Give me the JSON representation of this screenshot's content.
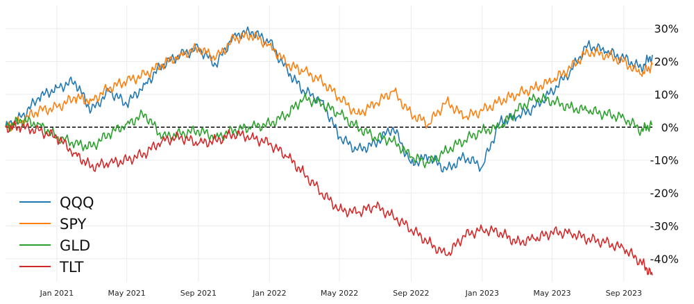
{
  "chart_data": {
    "type": "line",
    "title": "",
    "xlabel": "",
    "ylabel": "",
    "x_range": [
      "2020-10-05",
      "2023-10-20"
    ],
    "ylim": [
      -47,
      37
    ],
    "y_axis_side": "right",
    "y_ticks": [
      30,
      20,
      10,
      0,
      -10,
      -20,
      -30,
      -40
    ],
    "y_tick_labels": [
      "30%",
      "20%",
      "10%",
      "0%",
      "-10%",
      "-20%",
      "-30%",
      "-40%"
    ],
    "x_ticks": [
      "2021-01-01",
      "2021-05-01",
      "2021-09-01",
      "2022-01-01",
      "2022-05-01",
      "2022-09-01",
      "2023-01-01",
      "2023-05-01",
      "2023-09-01"
    ],
    "x_tick_labels": [
      "Jan 2021",
      "May 2021",
      "Sep 2021",
      "Jan 2022",
      "May 2022",
      "Sep 2022",
      "Jan 2023",
      "May 2023",
      "Sep 2023"
    ],
    "grid": true,
    "legend_position": "bottom-left",
    "reference_line": {
      "y": 0,
      "style": "dashed"
    },
    "x": [
      "2020-10-05",
      "2020-11-01",
      "2020-12-01",
      "2021-01-01",
      "2021-02-01",
      "2021-03-01",
      "2021-04-01",
      "2021-05-01",
      "2021-06-01",
      "2021-07-01",
      "2021-08-01",
      "2021-09-01",
      "2021-10-01",
      "2021-11-01",
      "2021-12-01",
      "2022-01-01",
      "2022-02-01",
      "2022-03-01",
      "2022-04-01",
      "2022-05-01",
      "2022-06-01",
      "2022-07-01",
      "2022-08-01",
      "2022-09-01",
      "2022-10-01",
      "2022-11-01",
      "2022-12-01",
      "2023-01-01",
      "2023-02-01",
      "2023-03-01",
      "2023-04-01",
      "2023-05-01",
      "2023-06-01",
      "2023-07-01",
      "2023-08-01",
      "2023-09-01",
      "2023-10-01",
      "2023-10-20"
    ],
    "series": [
      {
        "name": "QQQ",
        "color": "#1f77b4",
        "values": [
          0,
          3,
          9,
          12,
          14,
          5,
          11,
          7,
          13,
          19,
          22,
          24,
          19,
          28,
          29,
          26,
          17,
          11,
          8,
          -3,
          -7,
          -5,
          0,
          -11,
          -9,
          -13,
          -9,
          -12,
          2,
          3,
          6,
          11,
          17,
          25,
          23,
          21,
          18,
          22
        ]
      },
      {
        "name": "SPY",
        "color": "#ff7f0e",
        "values": [
          0,
          2,
          5,
          6,
          9,
          8,
          12,
          14,
          16,
          19,
          22,
          24,
          21,
          27,
          28,
          25,
          19,
          17,
          14,
          9,
          4,
          7,
          11,
          4,
          1,
          8,
          3,
          5,
          8,
          10,
          12,
          14,
          18,
          23,
          22,
          20,
          16,
          19
        ]
      },
      {
        "name": "GLD",
        "color": "#2ca02c",
        "values": [
          0,
          2,
          1,
          -3,
          -5,
          -6,
          -2,
          1,
          4,
          -3,
          -2,
          -1,
          -3,
          -1,
          0,
          1,
          4,
          9,
          7,
          4,
          0,
          -3,
          -4,
          -9,
          -11,
          -7,
          -4,
          -1,
          0,
          5,
          9,
          8,
          6,
          5,
          4,
          3,
          -1,
          1
        ]
      },
      {
        "name": "TLT",
        "color": "#d62728",
        "values": [
          0,
          0,
          -1,
          -3,
          -8,
          -12,
          -11,
          -10,
          -8,
          -4,
          -3,
          -5,
          -4,
          -2,
          -3,
          -5,
          -9,
          -14,
          -20,
          -25,
          -26,
          -24,
          -27,
          -31,
          -35,
          -39,
          -33,
          -31,
          -32,
          -35,
          -34,
          -32,
          -32,
          -34,
          -35,
          -37,
          -41,
          -45
        ]
      }
    ]
  }
}
